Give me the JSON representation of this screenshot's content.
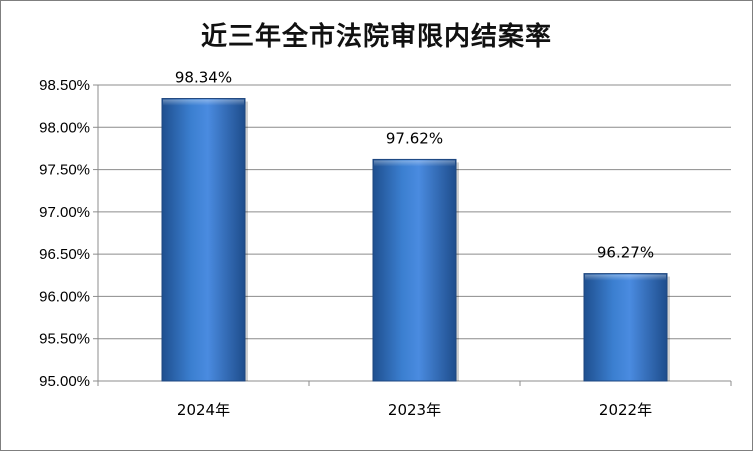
{
  "chart_data": {
    "type": "bar",
    "title": "近三年全市法院审限内结案率",
    "categories": [
      "2024年",
      "2023年",
      "2022年"
    ],
    "values": [
      98.34,
      97.62,
      96.27
    ],
    "data_labels": [
      "98.34%",
      "97.62%",
      "96.27%"
    ],
    "ylim": [
      95.0,
      98.5
    ],
    "yticks": [
      95.0,
      95.5,
      96.0,
      96.5,
      97.0,
      97.5,
      98.0,
      98.5
    ],
    "ytick_labels": [
      "95.00%",
      "95.50%",
      "96.00%",
      "96.50%",
      "97.00%",
      "97.50%",
      "98.00%",
      "98.50%"
    ],
    "grid": true,
    "legend": "none",
    "bar_color": "#2e6db4"
  }
}
